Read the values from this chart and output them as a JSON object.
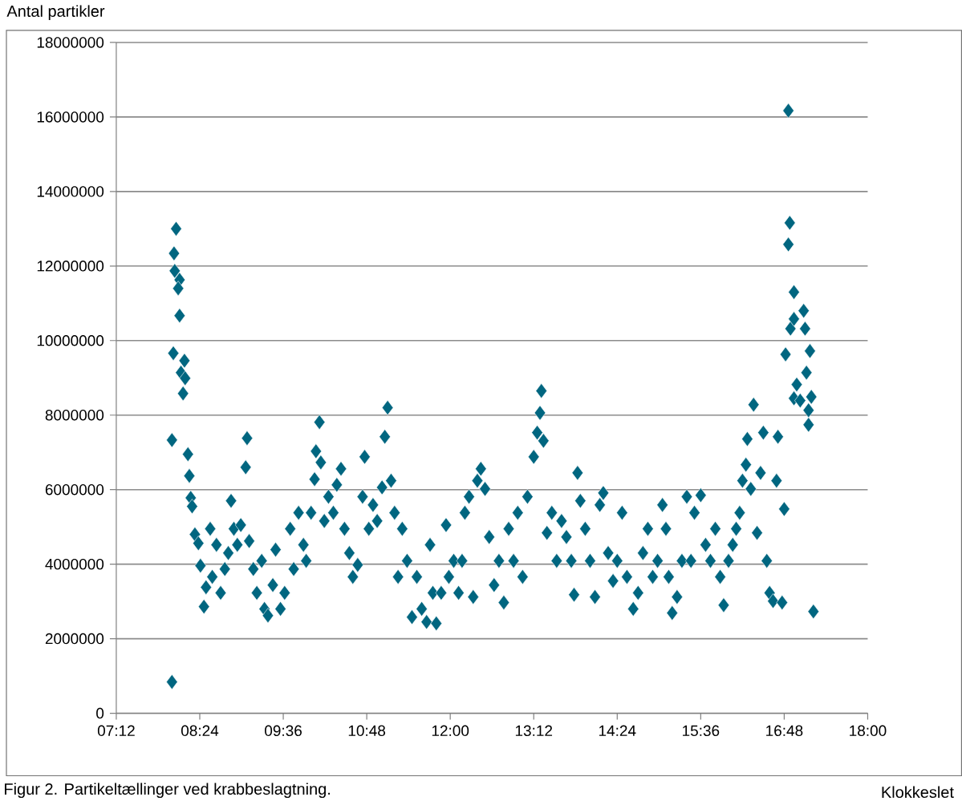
{
  "chart_data": {
    "type": "scatter",
    "ylabel": "Antal partikler",
    "xlabel": "Klokkeslet",
    "annotations": [
      "Figur 2. Partikeltællinger ved krabbeslagtning."
    ],
    "xlim": [
      7.2,
      18
    ],
    "xticks": [
      {
        "value": 7.2,
        "label": "07:12"
      },
      {
        "value": 8.4,
        "label": "08:24"
      },
      {
        "value": 9.6,
        "label": "09:36"
      },
      {
        "value": 10.8,
        "label": "10:48"
      },
      {
        "value": 12,
        "label": "12:00"
      },
      {
        "value": 13.2,
        "label": "13:12"
      },
      {
        "value": 14.4,
        "label": "14:24"
      },
      {
        "value": 15.6,
        "label": "15:36"
      },
      {
        "value": 16.8,
        "label": "16:48"
      },
      {
        "value": 18,
        "label": "18:00"
      }
    ],
    "ylim": [
      0,
      18000000
    ],
    "yticks": [
      0,
      2000000,
      4000000,
      6000000,
      8000000,
      10000000,
      12000000,
      14000000,
      16000000,
      18000000
    ],
    "grid": "y",
    "marker": "diamond",
    "series": [
      {
        "color": "#006680",
        "x": [
          8.0,
          8.0,
          8.02,
          8.03,
          8.06,
          8.04,
          8.11,
          8.09,
          8.11,
          8.13,
          8.18,
          8.19,
          8.16,
          8.23,
          8.25,
          8.27,
          8.29,
          8.33,
          8.38,
          8.41,
          8.46,
          8.49,
          8.55,
          8.58,
          8.64,
          8.7,
          8.76,
          8.81,
          8.85,
          8.89,
          8.94,
          8.99,
          9.08,
          9.06,
          9.11,
          9.17,
          9.22,
          9.29,
          9.33,
          9.38,
          9.45,
          9.49,
          9.56,
          9.62,
          9.7,
          9.75,
          9.82,
          9.89,
          9.93,
          10.0,
          10.05,
          10.07,
          10.12,
          10.14,
          10.19,
          10.25,
          10.32,
          10.37,
          10.43,
          10.48,
          10.55,
          10.6,
          10.67,
          10.74,
          10.77,
          10.83,
          10.89,
          10.95,
          11.02,
          11.1,
          11.06,
          11.15,
          11.2,
          11.25,
          11.31,
          11.38,
          11.45,
          11.52,
          11.59,
          11.66,
          11.71,
          11.75,
          11.8,
          11.87,
          11.94,
          11.98,
          12.05,
          12.12,
          12.17,
          12.21,
          12.27,
          12.33,
          12.39,
          12.44,
          12.5,
          12.56,
          12.63,
          12.7,
          12.77,
          12.84,
          12.91,
          12.97,
          13.04,
          13.11,
          13.2,
          13.25,
          13.29,
          13.31,
          13.34,
          13.39,
          13.46,
          13.53,
          13.6,
          13.67,
          13.74,
          13.78,
          13.83,
          13.87,
          13.94,
          14.01,
          14.08,
          14.15,
          14.2,
          14.27,
          14.34,
          14.4,
          14.47,
          14.54,
          14.63,
          14.7,
          14.77,
          14.84,
          14.91,
          14.98,
          15.05,
          15.1,
          15.14,
          15.19,
          15.26,
          15.33,
          15.4,
          15.46,
          15.51,
          15.6,
          15.67,
          15.74,
          15.81,
          15.88,
          15.93,
          16.0,
          16.06,
          16.11,
          16.16,
          16.2,
          16.25,
          16.27,
          16.32,
          16.36,
          16.41,
          16.46,
          16.5,
          16.55,
          16.59,
          16.64,
          16.69,
          16.71,
          16.77,
          16.8,
          16.82,
          16.86,
          16.88,
          16.86,
          16.94,
          16.89,
          16.94,
          16.98,
          16.94,
          17.03,
          17.08,
          17.1,
          17.12,
          17.17,
          17.15,
          17.15,
          17.19,
          17.22
        ],
        "values": [
          840000,
          7330000,
          9660000,
          12340000,
          13000000,
          11870000,
          11630000,
          11400000,
          10670000,
          9140000,
          9460000,
          8990000,
          8580000,
          6950000,
          6370000,
          5780000,
          5550000,
          4800000,
          4560000,
          3960000,
          2860000,
          3380000,
          4950000,
          3660000,
          4520000,
          3230000,
          3870000,
          4300000,
          5700000,
          4950000,
          4520000,
          5050000,
          7380000,
          6600000,
          4620000,
          3870000,
          3230000,
          4090000,
          2800000,
          2620000,
          3440000,
          4390000,
          2800000,
          3230000,
          4950000,
          3870000,
          5380000,
          4520000,
          4090000,
          5380000,
          6280000,
          7030000,
          7810000,
          6730000,
          5160000,
          5810000,
          5380000,
          6130000,
          6560000,
          4950000,
          4300000,
          3660000,
          3980000,
          5810000,
          6880000,
          4950000,
          5590000,
          5160000,
          6060000,
          8200000,
          7420000,
          6240000,
          5380000,
          3660000,
          4950000,
          4090000,
          2580000,
          3660000,
          2800000,
          2450000,
          4520000,
          3230000,
          2410000,
          3230000,
          5050000,
          3660000,
          4090000,
          3230000,
          4090000,
          5380000,
          5810000,
          3120000,
          6240000,
          6560000,
          6020000,
          4730000,
          3440000,
          4090000,
          2970000,
          4950000,
          4090000,
          5380000,
          3660000,
          5810000,
          6880000,
          7530000,
          8060000,
          8650000,
          7310000,
          4840000,
          5380000,
          4090000,
          5160000,
          4730000,
          4090000,
          3180000,
          6450000,
          5700000,
          4950000,
          4090000,
          3120000,
          5590000,
          5910000,
          4300000,
          3550000,
          4090000,
          5380000,
          3660000,
          2800000,
          3230000,
          4300000,
          4950000,
          3660000,
          4090000,
          5590000,
          4950000,
          3660000,
          2690000,
          3120000,
          4090000,
          5810000,
          4090000,
          5380000,
          5850000,
          4520000,
          4090000,
          4950000,
          3660000,
          2900000,
          4090000,
          4520000,
          4950000,
          5380000,
          6240000,
          6670000,
          7360000,
          6020000,
          8280000,
          4840000,
          6450000,
          7530000,
          4090000,
          3230000,
          3010000,
          6240000,
          7420000,
          2970000,
          5480000,
          9630000,
          16170000,
          13160000,
          12580000,
          11300000,
          10320000,
          10580000,
          8820000,
          8450000,
          8390000,
          10800000,
          10320000,
          9140000,
          9720000,
          8130000,
          7740000,
          8490000,
          2730000
        ]
      }
    ]
  }
}
